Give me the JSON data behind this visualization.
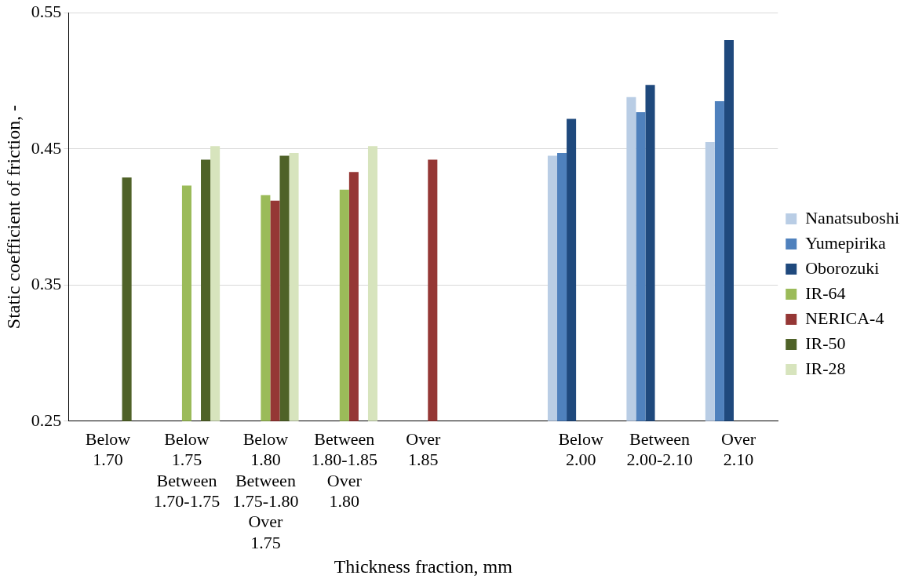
{
  "chart_data": {
    "type": "bar",
    "xlabel": "Thickness fraction, mm",
    "ylabel": "Static coefficient of friction, -",
    "categories": [
      "Below\n1.70",
      "Below\n1.75\nBetween\n1.70-1.75",
      "Below\n1.80\nBetween\n1.75-1.80\nOver\n1.75",
      "Between\n1.80-1.85\nOver\n1.80",
      "Over\n1.85",
      null,
      "Below\n2.00",
      "Between\n2.00-2.10",
      "Over\n2.10"
    ],
    "series": [
      {
        "name": "Nanatsuboshi",
        "color": "#b9cde5",
        "values": [
          null,
          null,
          null,
          null,
          null,
          null,
          0.445,
          0.488,
          0.455
        ]
      },
      {
        "name": "Yumepirika",
        "color": "#4f81bd",
        "values": [
          null,
          null,
          null,
          null,
          null,
          null,
          0.447,
          0.477,
          0.485
        ]
      },
      {
        "name": "Oborozuki",
        "color": "#1f497d",
        "values": [
          null,
          null,
          null,
          null,
          null,
          null,
          0.472,
          0.497,
          0.53
        ]
      },
      {
        "name": "IR-64",
        "color": "#9bbb59",
        "values": [
          null,
          0.423,
          0.416,
          0.42,
          null,
          null,
          null,
          null,
          null
        ]
      },
      {
        "name": "NERICA-4",
        "color": "#953735",
        "values": [
          null,
          null,
          0.412,
          0.433,
          0.442,
          null,
          null,
          null,
          null
        ]
      },
      {
        "name": "IR-50",
        "color": "#4f6228",
        "values": [
          0.429,
          0.442,
          0.445,
          null,
          null,
          null,
          null,
          null,
          null
        ]
      },
      {
        "name": "IR-28",
        "color": "#d7e4bd",
        "values": [
          null,
          0.452,
          0.447,
          0.452,
          null,
          null,
          null,
          null,
          null
        ]
      }
    ],
    "ylim": [
      0.25,
      0.55
    ],
    "yticks": [
      0.25,
      0.35,
      0.45,
      0.55
    ],
    "grid": "y",
    "legend": "right"
  }
}
